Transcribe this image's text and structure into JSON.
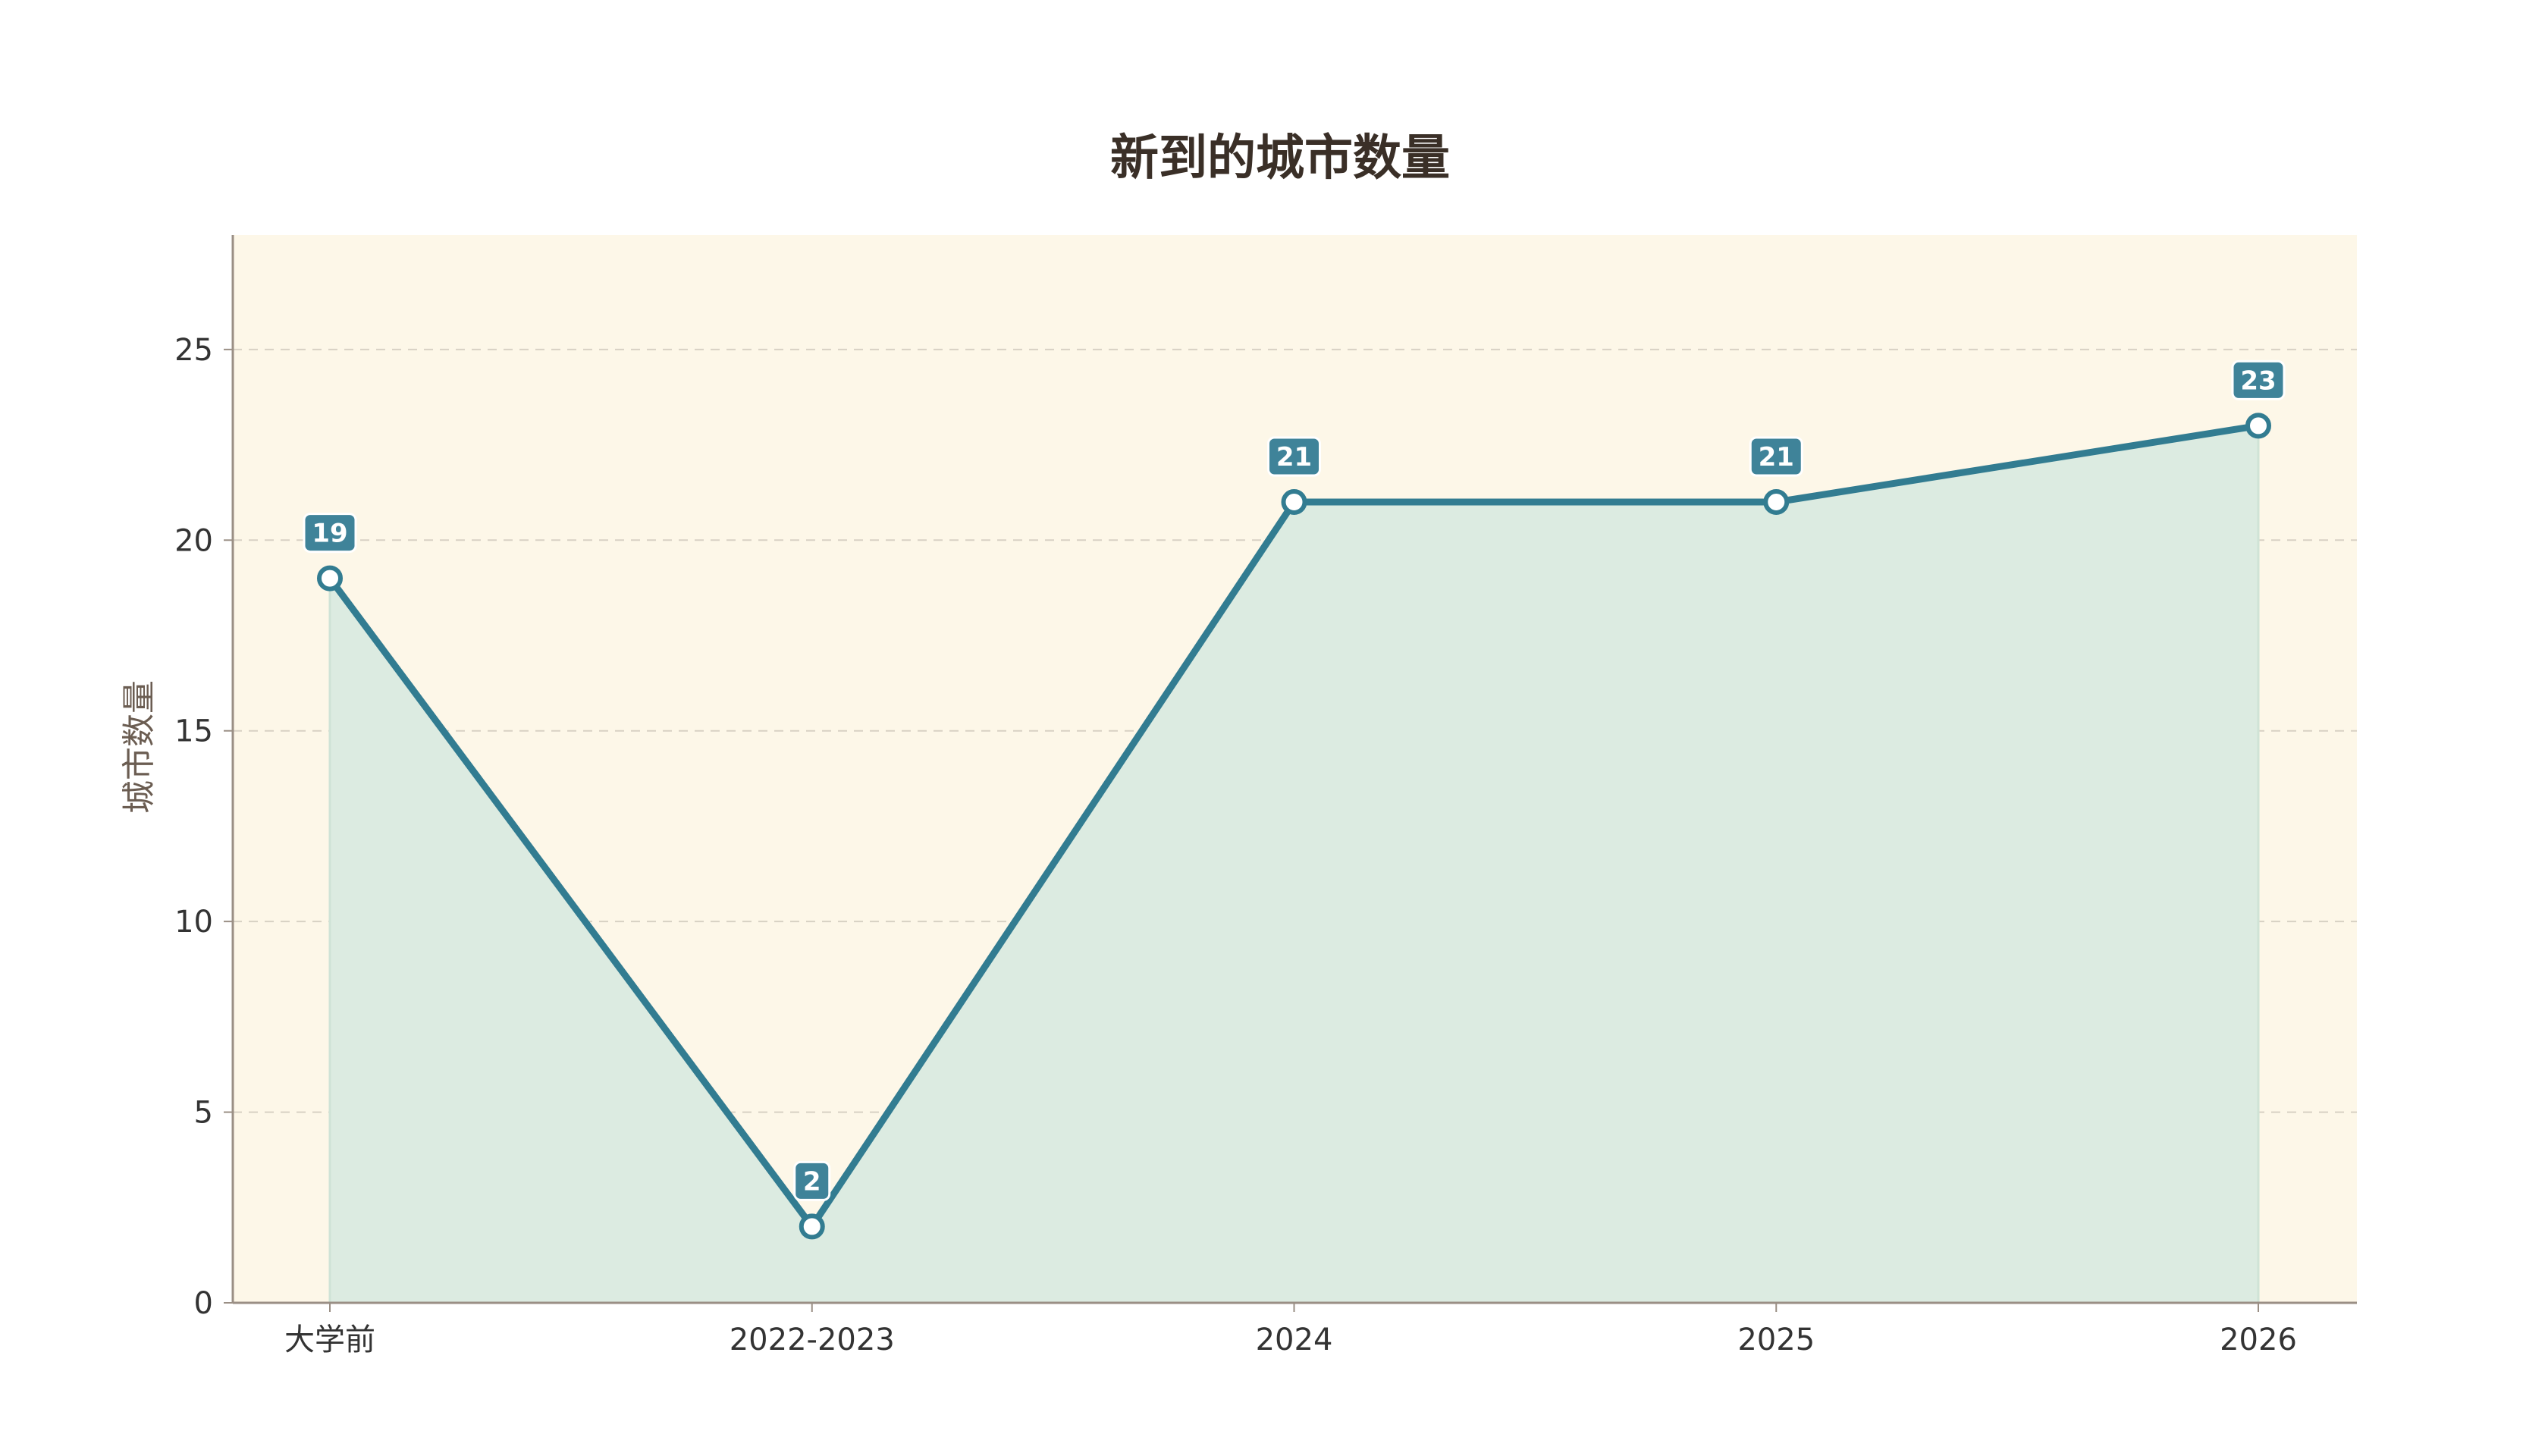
{
  "chart_data": {
    "type": "line",
    "title": "新到的城市数量",
    "xlabel": "",
    "ylabel": "城市数量",
    "categories": [
      "大学前",
      "2022-2023",
      "2024",
      "2025",
      "2026"
    ],
    "series": [
      {
        "values": [
          19,
          2,
          21,
          21,
          23
        ]
      }
    ],
    "ylim": [
      0,
      28
    ],
    "yticks": [
      0,
      5,
      10,
      15,
      20,
      25
    ],
    "grid": true,
    "area_fill": true,
    "data_labels": true,
    "colors": {
      "line": "#327c91",
      "area": "#dcebe1",
      "plot_bg": "#fdf7e8",
      "label_bg": "#3f8399",
      "grid": "#d8d1c4",
      "axis": "#9a8f85"
    }
  }
}
